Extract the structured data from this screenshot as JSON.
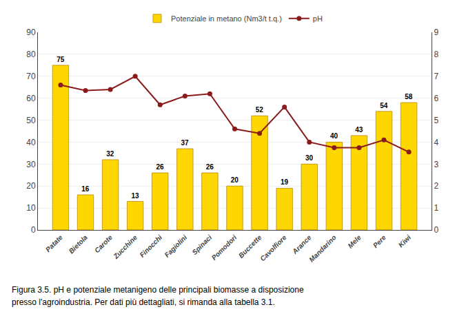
{
  "chart_data": {
    "type": "bar",
    "categories": [
      "Patate",
      "Bietola",
      "Carote",
      "Zucchine",
      "Finocchi",
      "Fagiolini",
      "Spinaci",
      "Pomodori",
      "Buccette",
      "Cavolfiore",
      "Arance",
      "Mandarino",
      "Mele",
      "Pere",
      "Kiwi"
    ],
    "series": [
      {
        "name": "Potenziale in metano (Nm3/t t.q.)",
        "type": "bar",
        "color": "#FFD700",
        "data_labels": true,
        "values": [
          75,
          16,
          32,
          13,
          26,
          37,
          26,
          20,
          52,
          19,
          30,
          40,
          43,
          54,
          58
        ]
      },
      {
        "name": "pH",
        "type": "line",
        "color": "#8B1A1A",
        "marker": "circle",
        "axis": "y2",
        "values": [
          6.6,
          6.35,
          6.4,
          7.0,
          5.7,
          6.1,
          6.2,
          4.6,
          4.4,
          5.6,
          4.0,
          3.75,
          3.75,
          4.1,
          3.55
        ]
      }
    ],
    "ylim": [
      0,
      90
    ],
    "yticks": [
      0,
      10,
      20,
      30,
      40,
      50,
      60,
      70,
      80,
      90
    ],
    "y2lim": [
      0,
      9
    ],
    "y2ticks": [
      0,
      1,
      2,
      3,
      4,
      5,
      6,
      7,
      8,
      9
    ],
    "grid": true,
    "legend": "top",
    "annotations": [
      "Figura 3.5. pH e potenziale metanigeno delle principali biomasse a disposizione",
      "presso l'agroindustria. Per dati più dettagliati, si rimanda alla tabella 3.1."
    ]
  }
}
